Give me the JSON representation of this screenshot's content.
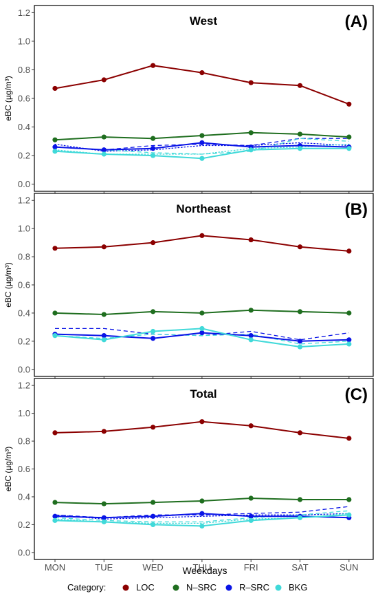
{
  "colors": {
    "LOC": "#8b0000",
    "N-SRC": "#1f6e1f",
    "R-SRC": "#0a14e6",
    "BKG": "#40d9d9"
  },
  "legend": {
    "title": "Category:",
    "items": [
      {
        "key": "LOC",
        "label": "LOC"
      },
      {
        "key": "N-SRC",
        "label": "N–SRC"
      },
      {
        "key": "R-SRC",
        "label": "R–SRC"
      },
      {
        "key": "BKG",
        "label": "BKG"
      }
    ]
  },
  "chart_data": [
    {
      "type": "line",
      "title": "West",
      "tag": "(A)",
      "xlabel": "",
      "ylabel": "eBC (µg/m³)",
      "ylim": [
        -0.05,
        1.25
      ],
      "yticks": [
        "0.0",
        "0.2",
        "0.4",
        "0.6",
        "0.8",
        "1.0",
        "1.2"
      ],
      "categories": [
        "MON",
        "TUE",
        "WED",
        "THU",
        "FRI",
        "SAT",
        "SUN"
      ],
      "show_x_tick_labels": false,
      "series": [
        {
          "name": "LOC",
          "values": [
            0.67,
            0.73,
            0.83,
            0.78,
            0.71,
            0.69,
            0.56
          ]
        },
        {
          "name": "N-SRC",
          "values": [
            0.31,
            0.33,
            0.32,
            0.34,
            0.36,
            0.35,
            0.33
          ]
        },
        {
          "name": "R-SRC",
          "values": [
            0.26,
            0.24,
            0.25,
            0.29,
            0.26,
            0.27,
            0.26
          ]
        },
        {
          "name": "BKG",
          "values": [
            0.23,
            0.21,
            0.2,
            0.18,
            0.24,
            0.25,
            0.25
          ]
        }
      ],
      "dashed": [
        {
          "color_key": "R-SRC",
          "values": [
            0.26,
            0.24,
            0.27,
            0.28,
            0.27,
            0.32,
            0.32
          ]
        },
        {
          "color_key": "BKG",
          "values": [
            0.26,
            0.24,
            0.22,
            0.21,
            0.23,
            0.32,
            0.3
          ]
        }
      ],
      "dotted": [
        {
          "color_key": "R-SRC",
          "values": [
            0.28,
            0.23,
            0.24,
            0.27,
            0.27,
            0.29,
            0.27
          ]
        },
        {
          "color_key": "BKG",
          "values": [
            0.24,
            0.21,
            0.21,
            0.21,
            0.25,
            0.26,
            0.28
          ]
        }
      ]
    },
    {
      "type": "line",
      "title": "Northeast",
      "tag": "(B)",
      "xlabel": "",
      "ylabel": "eBC (µg/m³)",
      "ylim": [
        -0.05,
        1.25
      ],
      "yticks": [
        "0.0",
        "0.2",
        "0.4",
        "0.6",
        "0.8",
        "1.0",
        "1.2"
      ],
      "categories": [
        "MON",
        "TUE",
        "WED",
        "THU",
        "FRI",
        "SAT",
        "SUN"
      ],
      "show_x_tick_labels": false,
      "series": [
        {
          "name": "LOC",
          "values": [
            0.86,
            0.87,
            0.9,
            0.95,
            0.92,
            0.87,
            0.84
          ]
        },
        {
          "name": "N-SRC",
          "values": [
            0.4,
            0.39,
            0.41,
            0.4,
            0.42,
            0.41,
            0.4
          ]
        },
        {
          "name": "R-SRC",
          "values": [
            0.25,
            0.24,
            0.22,
            0.26,
            0.24,
            0.2,
            0.21
          ]
        },
        {
          "name": "BKG",
          "values": [
            0.24,
            0.21,
            0.27,
            0.29,
            0.21,
            0.16,
            0.18
          ]
        }
      ],
      "dashed": [
        {
          "color_key": "R-SRC",
          "values": [
            0.29,
            0.29,
            0.25,
            0.24,
            0.27,
            0.21,
            0.26
          ]
        },
        {
          "color_key": "BKG",
          "values": [
            0.24,
            0.22,
            0.25,
            0.24,
            0.25,
            0.18,
            0.2
          ]
        }
      ],
      "dotted": []
    },
    {
      "type": "line",
      "title": "Total",
      "tag": "(C)",
      "xlabel": "Weekdays",
      "ylabel": "eBC (µg/m³)",
      "ylim": [
        -0.05,
        1.25
      ],
      "yticks": [
        "0.0",
        "0.2",
        "0.4",
        "0.6",
        "0.8",
        "1.0",
        "1.2"
      ],
      "categories": [
        "MON",
        "TUE",
        "WED",
        "THU",
        "FRI",
        "SAT",
        "SUN"
      ],
      "show_x_tick_labels": true,
      "series": [
        {
          "name": "LOC",
          "values": [
            0.86,
            0.87,
            0.9,
            0.94,
            0.91,
            0.86,
            0.82
          ]
        },
        {
          "name": "N-SRC",
          "values": [
            0.36,
            0.35,
            0.36,
            0.37,
            0.39,
            0.38,
            0.38
          ]
        },
        {
          "name": "R-SRC",
          "values": [
            0.26,
            0.25,
            0.26,
            0.28,
            0.26,
            0.26,
            0.25
          ]
        },
        {
          "name": "BKG",
          "values": [
            0.23,
            0.22,
            0.2,
            0.19,
            0.23,
            0.25,
            0.27
          ]
        }
      ],
      "dashed": [
        {
          "color_key": "R-SRC",
          "values": [
            0.27,
            0.25,
            0.27,
            0.27,
            0.28,
            0.29,
            0.33
          ]
        },
        {
          "color_key": "BKG",
          "values": [
            0.25,
            0.23,
            0.22,
            0.22,
            0.25,
            0.27,
            0.3
          ]
        }
      ],
      "dotted": [
        {
          "color_key": "R-SRC",
          "values": [
            0.27,
            0.24,
            0.25,
            0.26,
            0.27,
            0.27,
            0.28
          ]
        },
        {
          "color_key": "BKG",
          "values": [
            0.24,
            0.22,
            0.21,
            0.21,
            0.24,
            0.25,
            0.28
          ]
        }
      ]
    }
  ]
}
